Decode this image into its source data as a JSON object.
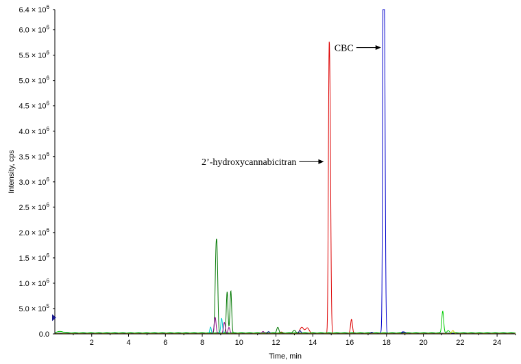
{
  "chart_data": {
    "type": "line",
    "xlabel": "Time, min",
    "ylabel": "Intensity, cps",
    "xlim": [
      0,
      25
    ],
    "ylim": [
      0,
      6400000
    ],
    "grid": false,
    "x_ticks": [
      2,
      4,
      6,
      8,
      10,
      12,
      14,
      16,
      18,
      20,
      22,
      24
    ],
    "x_tick_labels": [
      "2",
      "4",
      "6",
      "8",
      "10",
      "12",
      "14",
      "16",
      "18",
      "20",
      "22",
      "24"
    ],
    "y_ticks": [
      0,
      500000,
      1000000,
      1500000,
      2000000,
      2500000,
      3000000,
      3500000,
      4000000,
      4500000,
      5000000,
      5500000,
      6000000,
      6400000
    ],
    "y_tick_labels": [
      {
        "mantissa": "0.0",
        "exponent": ""
      },
      {
        "mantissa": "5.0 × 10",
        "exponent": "5"
      },
      {
        "mantissa": "1.0 × 10",
        "exponent": "6"
      },
      {
        "mantissa": "1.5 × 10",
        "exponent": "6"
      },
      {
        "mantissa": "2.0 × 10",
        "exponent": "6"
      },
      {
        "mantissa": "2.5 × 10",
        "exponent": "6"
      },
      {
        "mantissa": "3.0 × 10",
        "exponent": "6"
      },
      {
        "mantissa": "3.5 × 10",
        "exponent": "6"
      },
      {
        "mantissa": "4.0 × 10",
        "exponent": "6"
      },
      {
        "mantissa": "4.5 × 10",
        "exponent": "6"
      },
      {
        "mantissa": "5.0 × 10",
        "exponent": "6"
      },
      {
        "mantissa": "5.5 × 10",
        "exponent": "6"
      },
      {
        "mantissa": "6.0 × 10",
        "exponent": "6"
      },
      {
        "mantissa": "6.4 × 10",
        "exponent": "6"
      }
    ],
    "series": [
      {
        "color": "#0000cc",
        "baseline": 15000,
        "peaks": [
          {
            "t": 17.75,
            "h": 40000,
            "w": 0.05
          },
          {
            "t": 17.88,
            "h": 6400000,
            "w": 0.045
          },
          {
            "t": 17.82,
            "h": 5200000,
            "w": 0.035
          },
          {
            "t": 18.9,
            "h": 30000,
            "w": 0.08
          }
        ]
      },
      {
        "color": "#dd0000",
        "baseline": 10000,
        "peaks": [
          {
            "t": 12.3,
            "h": 30000,
            "w": 0.08
          },
          {
            "t": 13.4,
            "h": 120000,
            "w": 0.1
          },
          {
            "t": 13.7,
            "h": 110000,
            "w": 0.1
          },
          {
            "t": 14.93,
            "h": 4150000,
            "w": 0.045
          },
          {
            "t": 14.87,
            "h": 3500000,
            "w": 0.035
          },
          {
            "t": 16.1,
            "h": 280000,
            "w": 0.05
          }
        ]
      },
      {
        "color": "#007700",
        "baseline": 12000,
        "peaks": [
          {
            "t": 8.75,
            "h": 1580000,
            "w": 0.05
          },
          {
            "t": 8.82,
            "h": 900000,
            "w": 0.04
          },
          {
            "t": 9.35,
            "h": 820000,
            "w": 0.045
          },
          {
            "t": 9.55,
            "h": 840000,
            "w": 0.045
          },
          {
            "t": 12.1,
            "h": 120000,
            "w": 0.06
          },
          {
            "t": 13.0,
            "h": 60000,
            "w": 0.08
          }
        ]
      },
      {
        "color": "#00cc00",
        "baseline": 25000,
        "peaks": [
          {
            "t": 0.3,
            "h": 25000,
            "w": 0.2
          },
          {
            "t": 21.05,
            "h": 430000,
            "w": 0.05
          },
          {
            "t": 21.35,
            "h": 40000,
            "w": 0.06
          }
        ]
      },
      {
        "color": "#00cccc",
        "baseline": 8000,
        "peaks": [
          {
            "t": 8.45,
            "h": 130000,
            "w": 0.04
          },
          {
            "t": 9.05,
            "h": 300000,
            "w": 0.045
          }
        ]
      },
      {
        "color": "#880088",
        "baseline": 8000,
        "peaks": [
          {
            "t": 8.7,
            "h": 320000,
            "w": 0.05
          },
          {
            "t": 9.2,
            "h": 220000,
            "w": 0.05
          },
          {
            "t": 9.45,
            "h": 120000,
            "w": 0.05
          },
          {
            "t": 11.3,
            "h": 40000,
            "w": 0.06
          }
        ]
      },
      {
        "color": "#000088",
        "baseline": 5000,
        "peaks": [
          {
            "t": 11.6,
            "h": 40000,
            "w": 0.06
          },
          {
            "t": 13.3,
            "h": 60000,
            "w": 0.06
          },
          {
            "t": 17.2,
            "h": 30000,
            "w": 0.06
          },
          {
            "t": 18.95,
            "h": 35000,
            "w": 0.08
          }
        ]
      },
      {
        "color": "#cccc00",
        "baseline": 5000,
        "peaks": [
          {
            "t": 21.6,
            "h": 60000,
            "w": 0.06
          }
        ]
      }
    ],
    "annotations": [
      {
        "text": "CBC",
        "x": 17.7,
        "y": 5650000
      },
      {
        "text": "2’-hydroxycannabicitran",
        "x": 14.6,
        "y": 3400000
      }
    ],
    "marker_value": 320000
  }
}
